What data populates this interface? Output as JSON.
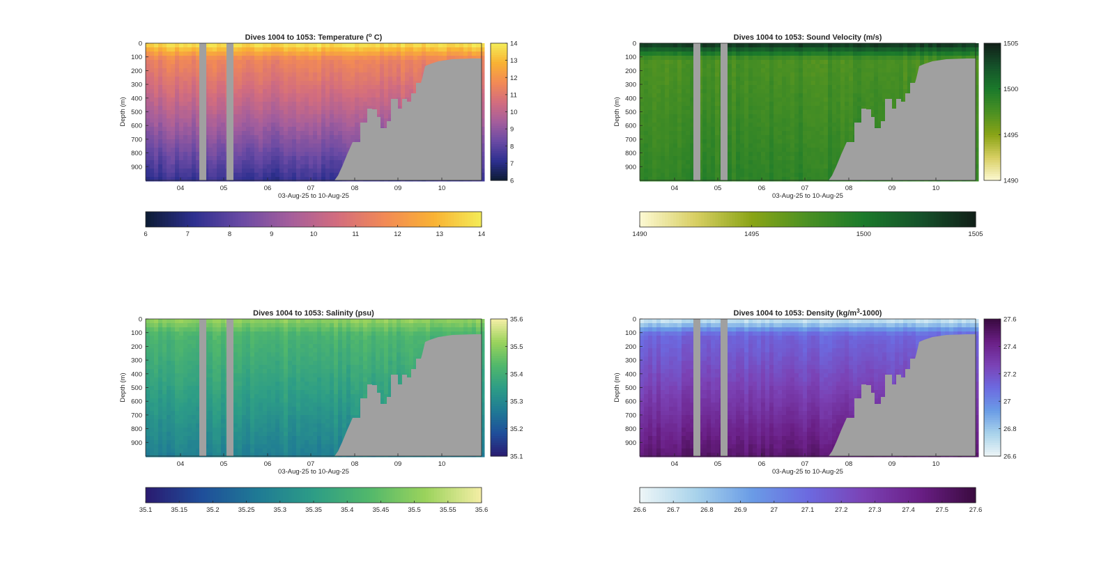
{
  "chart_data": [
    {
      "type": "heatmap",
      "variable": "temperature",
      "title": "Dives 1004 to 1053: Temperature (",
      "title_sup": "o",
      "title_suffix": " C)",
      "xlabel": "03-Aug-25 to 10-Aug-25",
      "ylabel": "Depth (m)",
      "x_ticks": [
        "04",
        "05",
        "06",
        "07",
        "08",
        "09",
        "10"
      ],
      "y_ticks": [
        "0",
        "100",
        "200",
        "300",
        "400",
        "500",
        "600",
        "700",
        "800",
        "900"
      ],
      "ylim": [
        0,
        1000
      ],
      "clim": [
        6,
        14
      ],
      "vcolorbar_ticks": [
        "6",
        "7",
        "8",
        "9",
        "10",
        "11",
        "12",
        "13",
        "14"
      ],
      "hcolorbar_ticks": [
        "6",
        "7",
        "8",
        "9",
        "10",
        "11",
        "12",
        "13",
        "14"
      ],
      "colormap": [
        "#0c1b33",
        "#2d2f8f",
        "#6a4aa4",
        "#a45e9c",
        "#d36d7e",
        "#f28a55",
        "#f9b234",
        "#f4ec57"
      ],
      "profile": {
        "surface": 13.6,
        "mix": 11.5,
        "deep": 7.2
      }
    },
    {
      "type": "heatmap",
      "variable": "sound_velocity",
      "title": "Dives 1004 to 1053: Sound Velocity (m/s)",
      "xlabel": "03-Aug-25 to 10-Aug-25",
      "ylabel": "Depth (m)",
      "x_ticks": [
        "04",
        "05",
        "06",
        "07",
        "08",
        "09",
        "10"
      ],
      "y_ticks": [
        "0",
        "100",
        "200",
        "300",
        "400",
        "500",
        "600",
        "700",
        "800",
        "900"
      ],
      "ylim": [
        0,
        1000
      ],
      "clim": [
        1490,
        1505
      ],
      "vcolorbar_ticks": [
        "1490",
        "1495",
        "1500",
        "1505"
      ],
      "hcolorbar_ticks": [
        "1490",
        "1495",
        "1500",
        "1505"
      ],
      "colormap": [
        "#fdf9d3",
        "#d8cf63",
        "#8aa416",
        "#4a9023",
        "#1b7a2b",
        "#15522a",
        "#111f18"
      ],
      "profile": {
        "surface": 1503.5,
        "mix": 1497.5,
        "deep": 1499.0
      }
    },
    {
      "type": "heatmap",
      "variable": "salinity",
      "title": "Dives 1004 to 1053: Salinity (psu)",
      "xlabel": "03-Aug-25 to 10-Aug-25",
      "ylabel": "Depth (m)",
      "x_ticks": [
        "04",
        "05",
        "06",
        "07",
        "08",
        "09",
        "10"
      ],
      "y_ticks": [
        "0",
        "100",
        "200",
        "300",
        "400",
        "500",
        "600",
        "700",
        "800",
        "900"
      ],
      "ylim": [
        0,
        1000
      ],
      "clim": [
        35.1,
        35.6
      ],
      "vcolorbar_ticks": [
        "35.1",
        "35.2",
        "35.3",
        "35.4",
        "35.5",
        "35.6"
      ],
      "hcolorbar_ticks": [
        "35.1",
        "35.15",
        "35.2",
        "35.25",
        "35.3",
        "35.35",
        "35.4",
        "35.45",
        "35.5",
        "35.55",
        "35.6"
      ],
      "colormap": [
        "#2a1a70",
        "#1f4e9a",
        "#1f7a95",
        "#2d9d86",
        "#52b86b",
        "#9bd35c",
        "#f5eea6"
      ],
      "profile": {
        "surface": 35.5,
        "mix": 35.42,
        "deep": 35.28
      }
    },
    {
      "type": "heatmap",
      "variable": "density",
      "title": "Dives 1004 to 1053: Density (kg/m",
      "title_sup": "3",
      "title_suffix": "-1000)",
      "xlabel": "03-Aug-25 to 10-Aug-25",
      "ylabel": "Depth (m)",
      "x_ticks": [
        "04",
        "05",
        "06",
        "07",
        "08",
        "09",
        "10"
      ],
      "y_ticks": [
        "0",
        "100",
        "200",
        "300",
        "400",
        "500",
        "600",
        "700",
        "800",
        "900"
      ],
      "ylim": [
        0,
        1000
      ],
      "clim": [
        26.6,
        27.6
      ],
      "vcolorbar_ticks": [
        "26.6",
        "26.8",
        "27",
        "27.2",
        "27.4",
        "27.6"
      ],
      "hcolorbar_ticks": [
        "26.6",
        "26.7",
        "26.8",
        "26.9",
        "27",
        "27.1",
        "27.2",
        "27.3",
        "27.4",
        "27.5",
        "27.6"
      ],
      "colormap": [
        "#eef6f7",
        "#a9d3eb",
        "#6a9ce6",
        "#6c6ae0",
        "#7b42b5",
        "#6a1f86",
        "#3a0a3f"
      ],
      "profile": {
        "surface": 26.72,
        "mix": 27.12,
        "deep": 27.5
      }
    }
  ],
  "style": {
    "no_data_color": "#a0a0a0",
    "axis_color": "#262626"
  }
}
